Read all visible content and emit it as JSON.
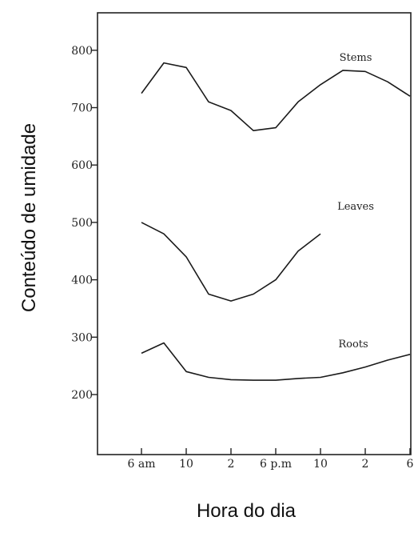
{
  "chart_data": {
    "type": "line",
    "xlabel": "Hora do dia",
    "ylabel": "Conteúdo de umidade",
    "x_ticks": [
      {
        "x": 6,
        "label": "6 am"
      },
      {
        "x": 10,
        "label": "10"
      },
      {
        "x": 14,
        "label": "2"
      },
      {
        "x": 18,
        "label": "6 p.m"
      },
      {
        "x": 22,
        "label": "10"
      },
      {
        "x": 26,
        "label": "2"
      },
      {
        "x": 30,
        "label": "6"
      }
    ],
    "xlim": [
      3,
      30
    ],
    "y_ticks": [
      200,
      300,
      400,
      500,
      600,
      700,
      800
    ],
    "ylim": [
      100,
      860
    ],
    "grid": false,
    "series": [
      {
        "name": "Stems",
        "x": [
          6,
          8,
          10,
          12,
          14,
          16,
          18,
          20,
          22,
          24,
          26,
          28,
          30
        ],
        "values": [
          725,
          778,
          770,
          710,
          695,
          660,
          665,
          710,
          740,
          765,
          763,
          745,
          720
        ]
      },
      {
        "name": "Leaves",
        "x": [
          6,
          8,
          10,
          12,
          14,
          16,
          18,
          20,
          22
        ],
        "values": [
          500,
          480,
          440,
          375,
          363,
          375,
          400,
          450,
          480
        ]
      },
      {
        "name": "Roots",
        "x": [
          6,
          8,
          10,
          12,
          14,
          16,
          18,
          20,
          22,
          24,
          26,
          28,
          30
        ],
        "values": [
          272,
          290,
          240,
          230,
          226,
          225,
          225,
          228,
          230,
          238,
          248,
          260,
          270
        ]
      }
    ]
  }
}
